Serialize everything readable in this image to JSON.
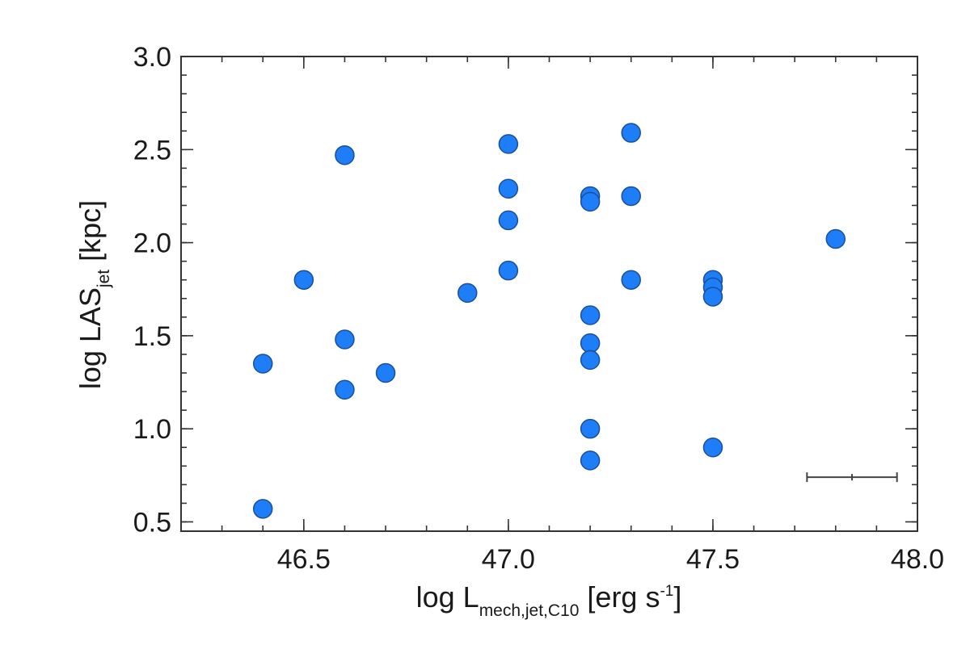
{
  "chart_data": {
    "type": "scatter",
    "xlabel": {
      "main": "log L",
      "sub": "mech,jet,C10",
      "unit_pre": " [erg s",
      "unit_sup": "-1",
      "unit_post": "]"
    },
    "ylabel": {
      "main": "log LAS",
      "sub": "jet",
      "unit": " [kpc]"
    },
    "xlim": [
      46.2,
      48.0
    ],
    "ylim": [
      0.45,
      3.0
    ],
    "x_ticks": [
      46.5,
      47.0,
      47.5,
      48.0
    ],
    "x_tick_labels": [
      "46.5",
      "47.0",
      "47.5",
      "48.0"
    ],
    "y_ticks": [
      0.5,
      1.0,
      1.5,
      2.0,
      2.5,
      3.0
    ],
    "y_tick_labels": [
      "0.5",
      "1.0",
      "1.5",
      "2.0",
      "2.5",
      "3.0"
    ],
    "x_minor_step": 0.1,
    "y_minor_step": 0.1,
    "points": [
      {
        "x": 46.4,
        "y": 1.35
      },
      {
        "x": 46.4,
        "y": 0.57
      },
      {
        "x": 46.5,
        "y": 1.8
      },
      {
        "x": 46.6,
        "y": 2.47
      },
      {
        "x": 46.6,
        "y": 1.48
      },
      {
        "x": 46.6,
        "y": 1.21
      },
      {
        "x": 46.7,
        "y": 1.3
      },
      {
        "x": 46.9,
        "y": 1.73
      },
      {
        "x": 47.0,
        "y": 2.53
      },
      {
        "x": 47.0,
        "y": 2.29
      },
      {
        "x": 47.0,
        "y": 2.12
      },
      {
        "x": 47.0,
        "y": 1.85
      },
      {
        "x": 47.2,
        "y": 2.25
      },
      {
        "x": 47.2,
        "y": 2.22
      },
      {
        "x": 47.2,
        "y": 1.61
      },
      {
        "x": 47.2,
        "y": 1.46
      },
      {
        "x": 47.2,
        "y": 1.37
      },
      {
        "x": 47.2,
        "y": 1.0
      },
      {
        "x": 47.2,
        "y": 0.83
      },
      {
        "x": 47.3,
        "y": 2.59
      },
      {
        "x": 47.3,
        "y": 2.25
      },
      {
        "x": 47.3,
        "y": 1.8
      },
      {
        "x": 47.5,
        "y": 1.8
      },
      {
        "x": 47.5,
        "y": 1.76
      },
      {
        "x": 47.5,
        "y": 1.71
      },
      {
        "x": 47.5,
        "y": 0.9
      },
      {
        "x": 47.8,
        "y": 2.02
      }
    ],
    "error_bar": {
      "x_center": 47.84,
      "x_half_width": 0.11,
      "y": 0.74
    },
    "marker_color": "#1e7ef7",
    "marker_edge_color": "#1a4f9c",
    "grid": false,
    "legend": "none"
  }
}
